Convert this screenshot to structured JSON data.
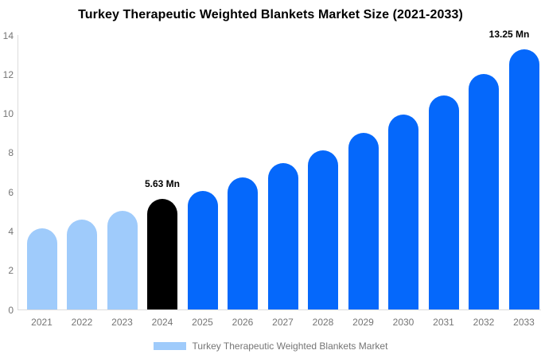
{
  "title": "Turkey Therapeutic Weighted Blankets Market Size (2021-2033)",
  "colors": {
    "historical_bar": "#9fcbfb",
    "base_year_bar": "#000000",
    "forecast_bar": "#0568fb",
    "axis_line": "#dcdcdc",
    "tick_text": "#757575",
    "title_text": "#000000",
    "annotation_text": "#000000",
    "background": "#ffffff"
  },
  "chart_data": {
    "type": "bar",
    "title": "Turkey Therapeutic Weighted Blankets Market Size (2021-2033)",
    "categories": [
      "2021",
      "2022",
      "2023",
      "2024",
      "2025",
      "2026",
      "2027",
      "2028",
      "2029",
      "2030",
      "2031",
      "2032",
      "2033"
    ],
    "values": [
      4.15,
      4.6,
      5.05,
      5.63,
      6.05,
      6.75,
      7.45,
      8.1,
      9.0,
      9.95,
      10.9,
      12.0,
      13.25
    ],
    "bar_colors": [
      "#9fcbfb",
      "#9fcbfb",
      "#9fcbfb",
      "#000000",
      "#0568fb",
      "#0568fb",
      "#0568fb",
      "#0568fb",
      "#0568fb",
      "#0568fb",
      "#0568fb",
      "#0568fb",
      "#0568fb"
    ],
    "unit": "Mn",
    "xlabel": "",
    "ylabel": "",
    "ylim": [
      0,
      14
    ],
    "yticks": [
      0,
      2,
      4,
      6,
      8,
      10,
      12,
      14
    ],
    "grid": false,
    "annotations": [
      {
        "category": "2024",
        "text": "5.63 Mn"
      },
      {
        "category": "2033",
        "text": "13.25 Mn"
      }
    ],
    "legend": {
      "position": "bottom",
      "label": "Turkey Therapeutic Weighted Blankets Market",
      "swatch_color": "#9fcbfb"
    }
  }
}
